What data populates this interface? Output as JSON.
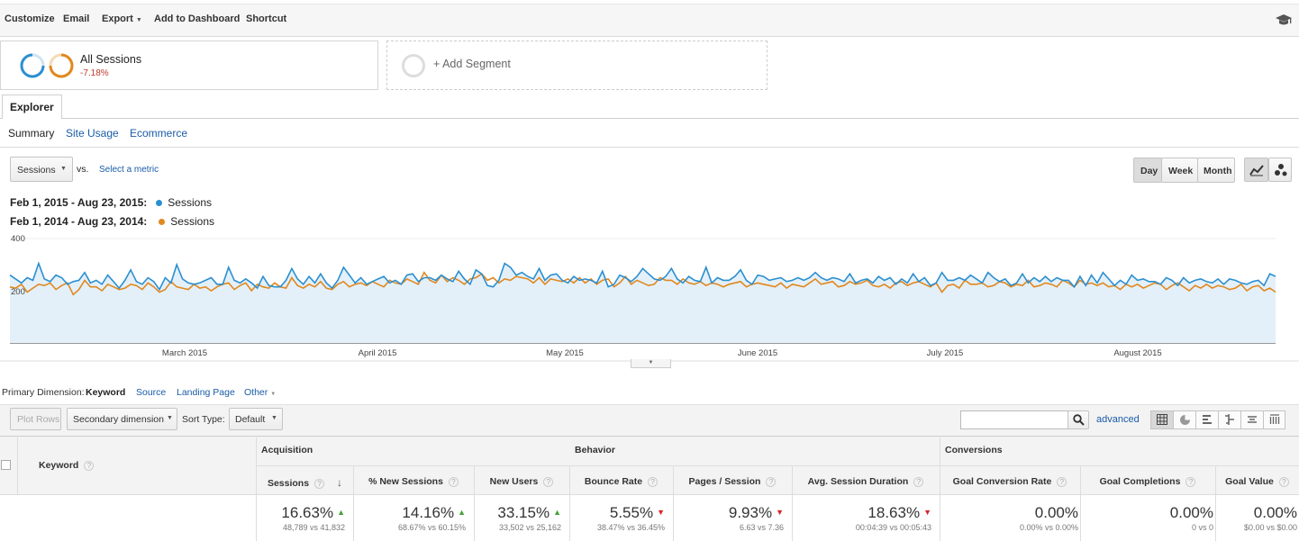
{
  "toolbar": {
    "customize": "Customize",
    "email": "Email",
    "export": "Export",
    "add_to_dashboard": "Add to Dashboard",
    "shortcut": "Shortcut",
    "help_icon": "graduation-cap-icon"
  },
  "segments": {
    "all_sessions_label": "All Sessions",
    "all_sessions_change": "-7.18%",
    "add_segment": "+ Add Segment"
  },
  "tabs": {
    "explorer": "Explorer"
  },
  "subtabs": {
    "summary": "Summary",
    "site_usage": "Site Usage",
    "ecommerce": "Ecommerce"
  },
  "metric_selector": {
    "value": "Sessions",
    "vs": "vs.",
    "select_metric": "Select a metric"
  },
  "granularity": {
    "day": "Day",
    "week": "Week",
    "month": "Month",
    "selected": "Day"
  },
  "legend": {
    "current_range": "Feb 1, 2015 - Aug 23, 2015:",
    "previous_range": "Feb 1, 2014 - Aug 23, 2014:",
    "series_name": "Sessions"
  },
  "chart_data": {
    "type": "line",
    "yticks": [
      400,
      200
    ],
    "ylim": [
      0,
      400
    ],
    "xtick_labels": [
      "March 2015",
      "April 2015",
      "May 2015",
      "June 2015",
      "July 2015",
      "August 2015"
    ],
    "series": [
      {
        "name": "Sessions",
        "color": "#2b8fd0",
        "values": [
          260,
          245,
          230,
          250,
          240,
          305,
          245,
          235,
          260,
          250,
          225,
          235,
          240,
          270,
          230,
          240,
          225,
          260,
          235,
          210,
          240,
          280,
          235,
          225,
          250,
          235,
          205,
          250,
          230,
          300,
          245,
          230,
          225,
          230,
          240,
          250,
          225,
          225,
          290,
          240,
          230,
          245,
          230,
          210,
          255,
          220,
          215,
          215,
          240,
          285,
          245,
          225,
          255,
          230,
          265,
          230,
          210,
          240,
          290,
          260,
          230,
          250,
          225,
          235,
          245,
          255,
          230,
          240,
          225,
          260,
          265,
          235,
          250,
          250,
          240,
          260,
          245,
          235,
          275,
          245,
          225,
          280,
          265,
          220,
          215,
          240,
          305,
          290,
          260,
          270,
          255,
          245,
          285,
          240,
          260,
          265,
          240,
          230,
          255,
          240,
          245,
          240,
          230,
          275,
          215,
          225,
          260,
          250,
          235,
          255,
          285,
          265,
          245,
          240,
          255,
          285,
          245,
          230,
          255,
          240,
          235,
          290,
          230,
          250,
          240,
          240,
          255,
          280,
          240,
          225,
          260,
          255,
          240,
          245,
          250,
          235,
          240,
          250,
          240,
          250,
          270,
          250,
          240,
          250,
          245,
          235,
          265,
          230,
          240,
          245,
          230,
          255,
          240,
          250,
          225,
          245,
          230,
          265,
          235,
          250,
          220,
          230,
          270,
          240,
          240,
          250,
          240,
          260,
          245,
          230,
          270,
          250,
          235,
          245,
          220,
          230,
          265,
          230,
          250,
          235,
          255,
          235,
          250,
          240,
          240,
          215,
          255,
          220,
          260,
          230,
          270,
          245,
          220,
          240,
          225,
          260,
          240,
          245,
          235,
          235,
          225,
          250,
          240,
          220,
          250,
          230,
          240,
          245,
          235,
          230,
          245,
          225,
          245,
          240,
          230,
          225,
          235,
          240,
          220,
          265,
          255
        ]
      },
      {
        "name": "Sessions",
        "color": "#e1881e",
        "values": [
          215,
          210,
          225,
          195,
          210,
          225,
          220,
          230,
          205,
          220,
          230,
          185,
          205,
          240,
          215,
          215,
          200,
          225,
          215,
          205,
          210,
          225,
          220,
          205,
          230,
          215,
          195,
          205,
          235,
          215,
          210,
          205,
          225,
          210,
          215,
          200,
          215,
          225,
          230,
          205,
          220,
          230,
          200,
          225,
          215,
          210,
          230,
          215,
          210,
          250,
          220,
          210,
          225,
          215,
          235,
          210,
          205,
          225,
          235,
          215,
          225,
          230,
          220,
          235,
          225,
          215,
          240,
          230,
          225,
          245,
          235,
          225,
          270,
          240,
          230,
          260,
          235,
          250,
          240,
          225,
          245,
          250,
          265,
          240,
          250,
          230,
          245,
          240,
          255,
          250,
          245,
          230,
          250,
          225,
          245,
          240,
          235,
          245,
          230,
          250,
          230,
          245,
          225,
          240,
          245,
          215,
          230,
          255,
          225,
          240,
          230,
          220,
          225,
          250,
          240,
          240,
          225,
          245,
          230,
          225,
          235,
          220,
          230,
          225,
          215,
          225,
          230,
          235,
          215,
          225,
          230,
          225,
          220,
          215,
          230,
          210,
          225,
          220,
          215,
          230,
          245,
          225,
          230,
          235,
          215,
          220,
          235,
          225,
          230,
          240,
          220,
          215,
          225,
          210,
          230,
          235,
          220,
          230,
          235,
          225,
          215,
          230,
          195,
          220,
          225,
          210,
          240,
          225,
          225,
          230,
          215,
          220,
          235,
          230,
          215,
          225,
          220,
          240,
          215,
          220,
          230,
          225,
          215,
          240,
          230,
          215,
          240,
          225,
          230,
          220,
          230,
          215,
          220,
          205,
          225,
          215,
          225,
          210,
          220,
          230,
          225,
          205,
          220,
          230,
          215,
          200,
          220,
          210,
          225,
          210,
          220,
          215,
          205,
          210,
          225,
          200,
          215,
          220,
          200,
          210,
          195
        ]
      }
    ]
  },
  "dimension": {
    "label": "Primary Dimension:",
    "keyword": "Keyword",
    "source": "Source",
    "landing_page": "Landing Page",
    "other": "Other"
  },
  "table_controls": {
    "plot_rows": "Plot Rows",
    "secondary_dimension": "Secondary dimension",
    "sort_type_label": "Sort Type:",
    "sort_type_value": "Default",
    "search_placeholder": "",
    "advanced": "advanced"
  },
  "table": {
    "keyword_header": "Keyword",
    "groups": {
      "acquisition": "Acquisition",
      "behavior": "Behavior",
      "conversions": "Conversions"
    },
    "columns": [
      {
        "label": "Sessions",
        "pct": "16.63%",
        "trend": "up",
        "sub": "48,789 vs 41,832"
      },
      {
        "label": "% New Sessions",
        "pct": "14.16%",
        "trend": "up",
        "sub": "68.67% vs 60.15%"
      },
      {
        "label": "New Users",
        "pct": "33.15%",
        "trend": "up",
        "sub": "33,502 vs 25,162"
      },
      {
        "label": "Bounce Rate",
        "pct": "5.55%",
        "trend": "down",
        "sub": "38.47% vs 36.45%"
      },
      {
        "label": "Pages / Session",
        "pct": "9.93%",
        "trend": "down",
        "sub": "6.63 vs 7.36"
      },
      {
        "label": "Avg. Session Duration",
        "pct": "18.63%",
        "trend": "down",
        "sub": "00:04:39 vs 00:05:43"
      },
      {
        "label": "Goal Conversion Rate",
        "pct": "0.00%",
        "trend": "",
        "sub": "0.00% vs 0.00%"
      },
      {
        "label": "Goal Completions",
        "pct": "0.00%",
        "trend": "",
        "sub": "0 vs 0"
      },
      {
        "label": "Goal Value",
        "pct": "0.00%",
        "trend": "",
        "sub": "$0.00 vs $0.00"
      }
    ],
    "up_color": "#43a336",
    "down_color": "#d8262a"
  }
}
